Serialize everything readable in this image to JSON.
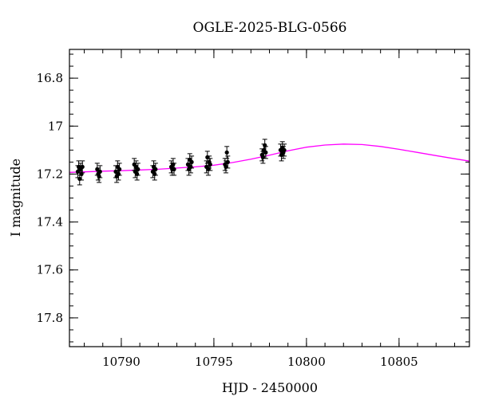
{
  "chart_data": {
    "type": "scatter",
    "title": "OGLE-2025-BLG-0566",
    "xlabel": "HJD - 2450000",
    "ylabel": "I magnitude",
    "xlim": [
      10787.2,
      10808.8
    ],
    "ylim": [
      17.92,
      16.68
    ],
    "y_inverted": true,
    "x_major_ticks": [
      10790,
      10795,
      10800,
      10805
    ],
    "x_tick_labels": [
      "10790",
      "10795",
      "10800",
      "10805"
    ],
    "x_minor_step": 1,
    "y_major_ticks": [
      16.8,
      17,
      17.2,
      17.4,
      17.6,
      17.8
    ],
    "y_tick_labels": [
      "16.8",
      "17",
      "17.2",
      "17.4",
      "17.6",
      "17.8"
    ],
    "y_minor_step": 0.05,
    "grid": false,
    "model_color": "#ff00ff",
    "point_color": "#000000",
    "model": {
      "x": [
        10787.2,
        10788,
        10789,
        10790,
        10791,
        10792,
        10793,
        10794,
        10795,
        10796,
        10797,
        10798,
        10799,
        10800,
        10801,
        10802,
        10803,
        10804,
        10805,
        10806,
        10807,
        10808,
        10808.8
      ],
      "y": [
        17.193,
        17.191,
        17.188,
        17.186,
        17.183,
        17.18,
        17.175,
        17.17,
        17.163,
        17.152,
        17.138,
        17.121,
        17.103,
        17.088,
        17.079,
        17.075,
        17.077,
        17.085,
        17.097,
        17.11,
        17.123,
        17.136,
        17.146
      ]
    },
    "points": {
      "x": [
        10787.65,
        10787.7,
        10787.75,
        10787.8,
        10787.85,
        10787.9,
        10788.7,
        10788.75,
        10788.8,
        10788.85,
        10789.7,
        10789.75,
        10789.8,
        10789.85,
        10789.9,
        10790.7,
        10790.75,
        10790.8,
        10790.85,
        10790.9,
        10791.7,
        10791.75,
        10791.8,
        10791.85,
        10792.7,
        10792.75,
        10792.8,
        10792.85,
        10793.6,
        10793.65,
        10793.7,
        10793.75,
        10793.8,
        10794.6,
        10794.65,
        10794.7,
        10794.75,
        10794.8,
        10795.6,
        10795.65,
        10795.7,
        10795.75,
        10797.6,
        10797.65,
        10797.7,
        10797.75,
        10797.8,
        10798.6,
        10798.65,
        10798.7,
        10798.75,
        10798.8
      ],
      "y": [
        17.19,
        17.17,
        17.22,
        17.18,
        17.2,
        17.17,
        17.18,
        17.2,
        17.21,
        17.19,
        17.19,
        17.21,
        17.17,
        17.2,
        17.18,
        17.16,
        17.19,
        17.17,
        17.2,
        17.18,
        17.19,
        17.17,
        17.2,
        17.18,
        17.17,
        17.18,
        17.16,
        17.18,
        17.16,
        17.18,
        17.14,
        17.17,
        17.15,
        17.17,
        17.13,
        17.18,
        17.15,
        17.16,
        17.16,
        17.17,
        17.11,
        17.15,
        17.12,
        17.13,
        17.1,
        17.08,
        17.11,
        17.1,
        17.12,
        17.09,
        17.11,
        17.1
      ],
      "err": [
        0.025,
        0.025,
        0.025,
        0.025,
        0.025,
        0.025,
        0.025,
        0.025,
        0.025,
        0.025,
        0.025,
        0.025,
        0.025,
        0.025,
        0.025,
        0.025,
        0.025,
        0.025,
        0.025,
        0.025,
        0.025,
        0.025,
        0.025,
        0.025,
        0.025,
        0.025,
        0.025,
        0.025,
        0.025,
        0.025,
        0.025,
        0.025,
        0.025,
        0.025,
        0.025,
        0.025,
        0.025,
        0.025,
        0.025,
        0.025,
        0.025,
        0.025,
        0.025,
        0.025,
        0.025,
        0.025,
        0.025,
        0.025,
        0.025,
        0.025,
        0.025,
        0.025
      ]
    }
  }
}
